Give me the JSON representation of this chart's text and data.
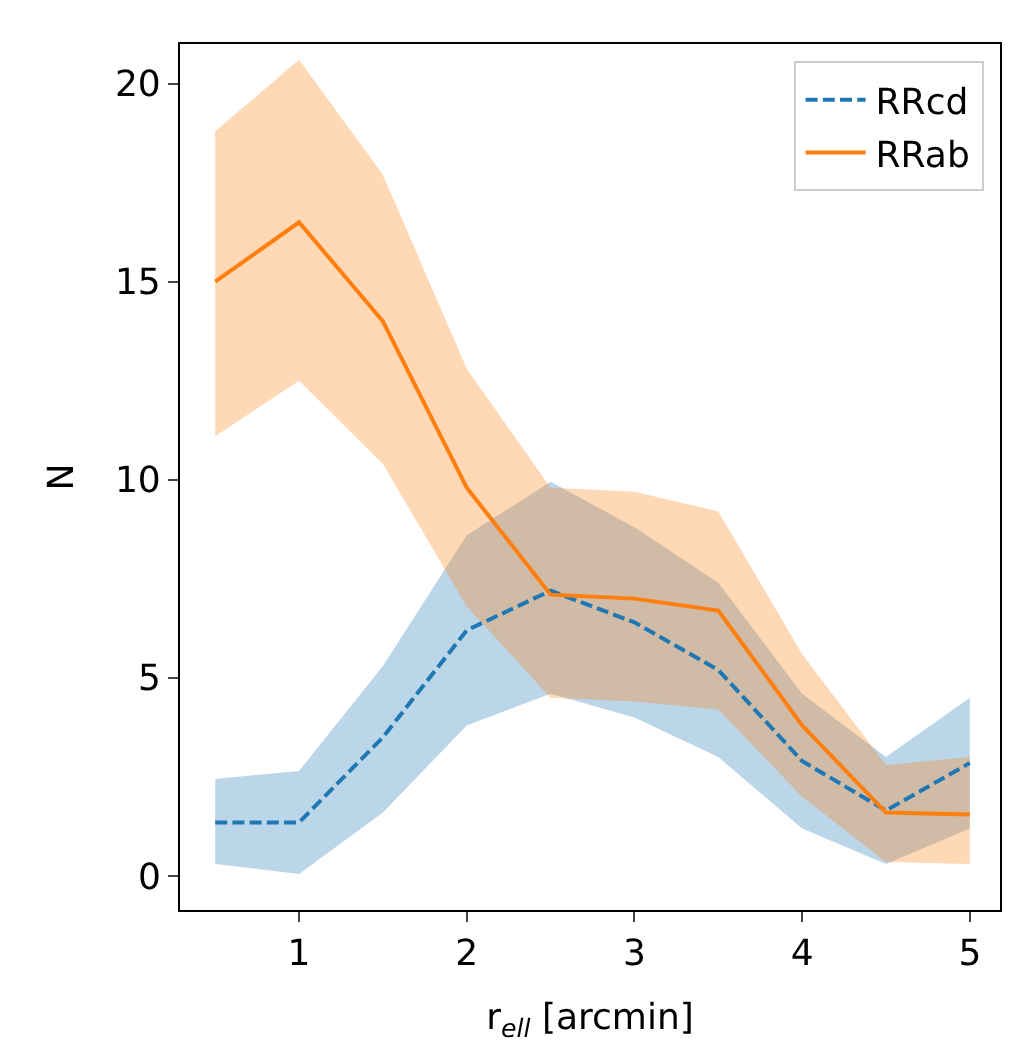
{
  "chart_data": {
    "type": "line",
    "xlabel": "r$_{ell}$ [arcmin]",
    "ylabel": "N",
    "x": [
      0.5,
      1,
      1.5,
      2,
      2.5,
      3,
      3.5,
      4,
      4.5,
      5
    ],
    "xlim": [
      0.29,
      5.18
    ],
    "xticks": [
      1,
      2,
      3,
      4,
      5
    ],
    "ylim": [
      -0.86,
      21.0
    ],
    "yticks": [
      0,
      5,
      10,
      15,
      20
    ],
    "legend": "top right",
    "marker": "none",
    "series": [
      {
        "name": "RRcd",
        "color": "#1f77b4",
        "line_style": "dashed",
        "values": [
          1.35,
          1.35,
          3.5,
          6.2,
          7.2,
          6.4,
          5.2,
          2.9,
          1.65,
          2.85
        ],
        "lower": [
          0.3,
          0.05,
          1.6,
          3.8,
          4.6,
          4.0,
          3.0,
          1.2,
          0.3,
          1.2
        ],
        "upper": [
          2.45,
          2.65,
          5.3,
          8.6,
          9.95,
          8.8,
          7.4,
          4.6,
          3.0,
          4.5
        ]
      },
      {
        "name": "RRab",
        "color": "#ff7f0e",
        "line_style": "solid",
        "values": [
          15.0,
          16.5,
          14.0,
          9.8,
          7.1,
          7.0,
          6.7,
          3.8,
          1.6,
          1.55
        ],
        "lower": [
          11.1,
          12.5,
          10.4,
          6.8,
          4.5,
          4.4,
          4.2,
          2.0,
          0.35,
          0.3
        ],
        "upper": [
          18.8,
          20.6,
          17.7,
          12.8,
          9.8,
          9.7,
          9.2,
          5.6,
          2.8,
          3.0
        ]
      }
    ]
  }
}
